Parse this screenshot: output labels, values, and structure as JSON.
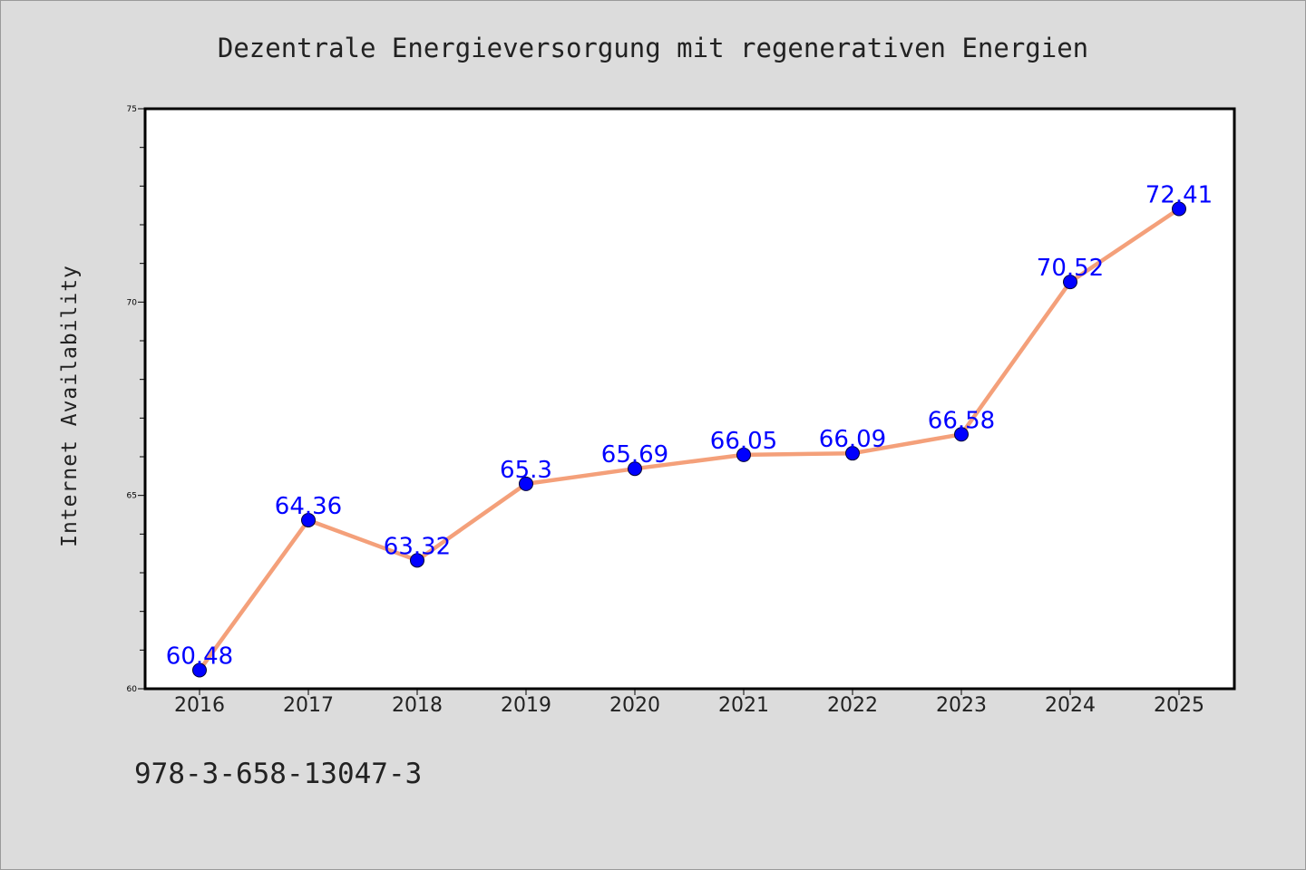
{
  "chart_data": {
    "type": "line",
    "title": "Dezentrale Energieversorgung mit regenerativen Energien",
    "xlabel": "",
    "ylabel": "Internet Availability",
    "categories": [
      "2016",
      "2017",
      "2018",
      "2019",
      "2020",
      "2021",
      "2022",
      "2023",
      "2024",
      "2025"
    ],
    "series": [
      {
        "values": [
          60.48,
          64.36,
          63.32,
          65.3,
          65.69,
          66.05,
          66.09,
          66.58,
          70.52,
          72.41
        ],
        "data_labels": [
          "60.48",
          "64.36",
          "63.32",
          "65.3",
          "65.69",
          "66.05",
          "66.09",
          "66.58",
          "70.52",
          "72.41"
        ],
        "line_color": "#f4a07a",
        "marker_color": "#0000ff",
        "label_color": "#0000ff"
      }
    ],
    "ylim": [
      60,
      75
    ],
    "yticks": [
      "60",
      "65",
      "70",
      "75"
    ],
    "y_minor_step": 1,
    "grid": false,
    "legend": "none"
  },
  "footer": {
    "isbn": "978-3-658-13047-3"
  },
  "colors": {
    "background": "#dcdcdc",
    "plot_background": "#ffffff",
    "axis": "#000000"
  }
}
